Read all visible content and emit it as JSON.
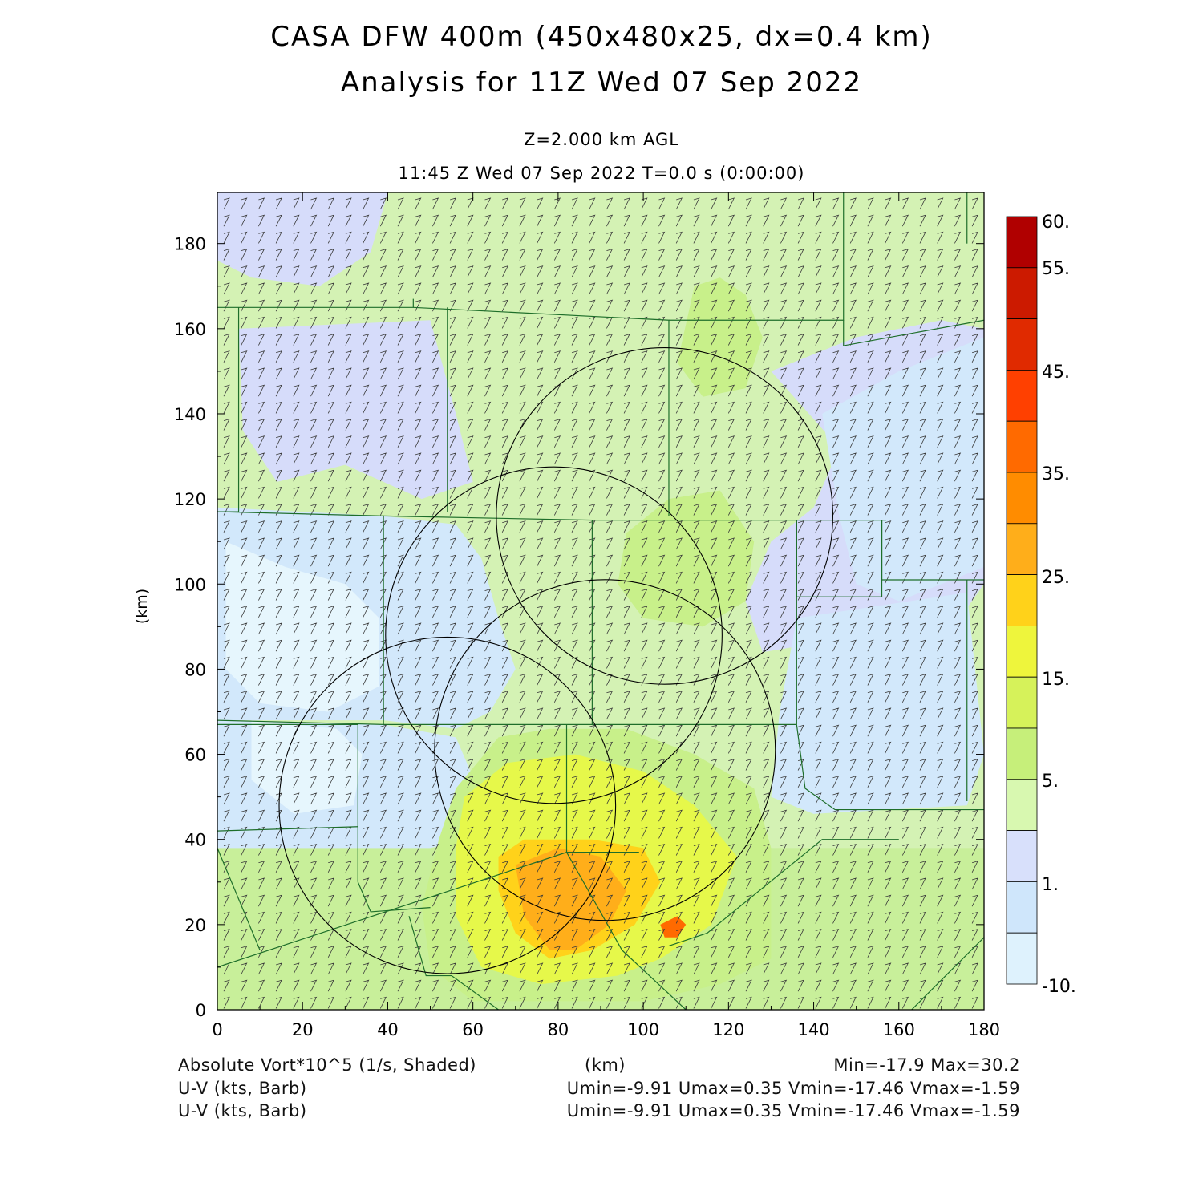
{
  "header": {
    "title_line1": "CASA DFW 400m (450x480x25, dx=0.4 km)",
    "title_line2": "Analysis for 11Z Wed 07 Sep 2022",
    "level": "Z=2.000 km AGL",
    "time": "11:45 Z Wed 07 Sep 2022   T=0.0 s (0:00:00)"
  },
  "axes": {
    "x_label": "(km)",
    "y_label": "(km)",
    "x_range": [
      0,
      180
    ],
    "y_range": [
      0,
      192
    ],
    "x_ticks": [
      "0",
      "20",
      "40",
      "60",
      "80",
      "100",
      "120",
      "140",
      "160",
      "180"
    ],
    "y_ticks": [
      "0",
      "20",
      "40",
      "60",
      "80",
      "100",
      "120",
      "140",
      "160",
      "180"
    ]
  },
  "colorbar": {
    "labels": [
      "60.",
      "55.",
      "45.",
      "35.",
      "25.",
      "15.",
      "5.",
      "1.",
      "-10."
    ],
    "colors": [
      "#b00000",
      "#cc1a00",
      "#e02a00",
      "#ff4000",
      "#ff6a00",
      "#ff8c00",
      "#ffae1a",
      "#ffd21a",
      "#eef53c",
      "#d6f25a",
      "#c6ef7a",
      "#d8f8b0",
      "#d8e0fb",
      "#cfe6fb",
      "#def2fd"
    ]
  },
  "footer": {
    "field1": "Absolute Vort*10^5 (1/s, Shaded)",
    "xunit": "(km)",
    "minmax": "Min=-17.9 Max=30.2",
    "field2": "U-V (kts, Barb)",
    "uv2": "Umin=-9.91 Umax=0.35 Vmin=-17.46 Vmax=-1.59",
    "field3": "U-V (kts, Barb)",
    "uv3": "Umin=-9.91 Umax=0.35 Vmin=-17.46 Vmax=-1.59"
  },
  "map_data": {
    "radar_rings_km": [
      {
        "cx": 105,
        "cy": 116,
        "r": 39.5
      },
      {
        "cx": 79,
        "cy": 88,
        "r": 39.5
      },
      {
        "cx": 91,
        "cy": 61,
        "r": 40
      },
      {
        "cx": 54,
        "cy": 48,
        "r": 39.5
      }
    ],
    "county_lines_km": [
      [
        [
          0,
          165
        ],
        [
          46,
          165
        ],
        [
          46,
          167
        ]
      ],
      [
        [
          5,
          165
        ],
        [
          5,
          117
        ],
        [
          0,
          117
        ]
      ],
      [
        [
          54,
          165
        ],
        [
          54,
          117
        ]
      ],
      [
        [
          46,
          165
        ],
        [
          106,
          162
        ],
        [
          106,
          116
        ]
      ],
      [
        [
          106,
          162
        ],
        [
          147,
          162
        ],
        [
          147,
          192
        ]
      ],
      [
        [
          147,
          162
        ],
        [
          147,
          156
        ],
        [
          180,
          162
        ]
      ],
      [
        [
          0,
          117
        ],
        [
          39,
          116
        ],
        [
          39,
          67
        ],
        [
          0,
          68
        ]
      ],
      [
        [
          39,
          116
        ],
        [
          88,
          115
        ],
        [
          136,
          115
        ],
        [
          157,
          115
        ]
      ],
      [
        [
          88,
          115
        ],
        [
          88,
          67
        ]
      ],
      [
        [
          136,
          115
        ],
        [
          136,
          67
        ]
      ],
      [
        [
          136,
          115
        ],
        [
          136,
          97
        ],
        [
          156,
          97
        ],
        [
          156,
          115
        ]
      ],
      [
        [
          156,
          115
        ],
        [
          156,
          101
        ],
        [
          176,
          101
        ],
        [
          180,
          101
        ]
      ],
      [
        [
          39,
          67
        ],
        [
          88,
          67
        ],
        [
          136,
          67
        ]
      ],
      [
        [
          0,
          67
        ],
        [
          33,
          67
        ],
        [
          33,
          30
        ]
      ],
      [
        [
          33,
          30
        ],
        [
          36,
          23
        ],
        [
          50,
          24
        ]
      ],
      [
        [
          0,
          10
        ],
        [
          82,
          37
        ],
        [
          99,
          37
        ]
      ],
      [
        [
          82,
          67
        ],
        [
          82,
          37
        ],
        [
          95,
          14
        ],
        [
          110,
          0
        ]
      ],
      [
        [
          136,
          67
        ],
        [
          138,
          52
        ],
        [
          145,
          47
        ],
        [
          180,
          47
        ]
      ],
      [
        [
          176,
          101
        ],
        [
          176,
          49
        ]
      ],
      [
        [
          106,
          15
        ],
        [
          115,
          18
        ],
        [
          142,
          40
        ],
        [
          160,
          40
        ]
      ],
      [
        [
          0,
          38
        ],
        [
          10,
          14
        ]
      ],
      [
        [
          45,
          22
        ],
        [
          49,
          8
        ],
        [
          55,
          8
        ],
        [
          66,
          0
        ]
      ],
      [
        [
          180,
          17
        ],
        [
          163,
          0
        ]
      ],
      [
        [
          176,
          192
        ],
        [
          176,
          180
        ]
      ],
      [
        [
          0,
          42
        ],
        [
          33,
          43
        ]
      ]
    ],
    "vorticity_patches": [
      {
        "level": "1",
        "poly": [
          [
            0,
            192
          ],
          [
            40,
            192
          ],
          [
            36,
            178
          ],
          [
            24,
            170
          ],
          [
            8,
            172
          ],
          [
            0,
            176
          ]
        ]
      },
      {
        "level": "1",
        "poly": [
          [
            5,
            160
          ],
          [
            50,
            162
          ],
          [
            56,
            140
          ],
          [
            60,
            124
          ],
          [
            48,
            120
          ],
          [
            30,
            128
          ],
          [
            14,
            124
          ],
          [
            6,
            136
          ]
        ]
      },
      {
        "level": "1",
        "poly": [
          [
            130,
            150
          ],
          [
            150,
            158
          ],
          [
            170,
            162
          ],
          [
            180,
            160
          ],
          [
            180,
            100
          ],
          [
            170,
            86
          ],
          [
            156,
            84
          ],
          [
            140,
            86
          ],
          [
            128,
            84
          ],
          [
            124,
            96
          ],
          [
            130,
            110
          ],
          [
            140,
            118
          ],
          [
            146,
            132
          ]
        ]
      },
      {
        "level": "0",
        "poly": [
          [
            0,
            118
          ],
          [
            39,
            116
          ],
          [
            56,
            114
          ],
          [
            62,
            106
          ],
          [
            66,
            92
          ],
          [
            70,
            80
          ],
          [
            64,
            70
          ],
          [
            56,
            66
          ],
          [
            39,
            68
          ],
          [
            0,
            68
          ]
        ]
      },
      {
        "level": "0",
        "poly": [
          [
            142,
            140
          ],
          [
            160,
            150
          ],
          [
            180,
            158
          ],
          [
            180,
            104
          ],
          [
            160,
            96
          ],
          [
            150,
            100
          ],
          [
            146,
            116
          ]
        ]
      },
      {
        "level": "0",
        "poly": [
          [
            0,
            68
          ],
          [
            39,
            67
          ],
          [
            56,
            64
          ],
          [
            62,
            50
          ],
          [
            58,
            40
          ],
          [
            50,
            38
          ],
          [
            30,
            38
          ],
          [
            0,
            38
          ]
        ]
      },
      {
        "level": "0",
        "poly": [
          [
            136,
            92
          ],
          [
            176,
            98
          ],
          [
            180,
            60
          ],
          [
            176,
            48
          ],
          [
            140,
            46
          ],
          [
            130,
            50
          ],
          [
            132,
            70
          ]
        ]
      },
      {
        "level": "-10",
        "poly": [
          [
            2,
            110
          ],
          [
            16,
            104
          ],
          [
            30,
            100
          ],
          [
            38,
            92
          ],
          [
            38,
            76
          ],
          [
            26,
            70
          ],
          [
            10,
            72
          ],
          [
            2,
            80
          ]
        ]
      },
      {
        "level": "-10",
        "poly": [
          [
            8,
            68
          ],
          [
            28,
            66
          ],
          [
            34,
            60
          ],
          [
            32,
            48
          ],
          [
            18,
            46
          ],
          [
            8,
            54
          ]
        ]
      },
      {
        "level": "10",
        "poly": [
          [
            112,
            170
          ],
          [
            118,
            172
          ],
          [
            124,
            168
          ],
          [
            128,
            158
          ],
          [
            124,
            146
          ],
          [
            114,
            144
          ],
          [
            108,
            152
          ]
        ]
      },
      {
        "level": "10",
        "poly": [
          [
            96,
            112
          ],
          [
            106,
            120
          ],
          [
            118,
            122
          ],
          [
            126,
            110
          ],
          [
            124,
            96
          ],
          [
            114,
            90
          ],
          [
            100,
            92
          ],
          [
            94,
            100
          ]
        ]
      },
      {
        "level": "10",
        "poly": [
          [
            52,
            40
          ],
          [
            56,
            52
          ],
          [
            66,
            64
          ],
          [
            78,
            66
          ],
          [
            96,
            66
          ],
          [
            112,
            60
          ],
          [
            126,
            52
          ],
          [
            130,
            38
          ],
          [
            130,
            12
          ],
          [
            118,
            6
          ],
          [
            100,
            2
          ],
          [
            60,
            2
          ],
          [
            50,
            10
          ],
          [
            48,
            24
          ]
        ]
      },
      {
        "level": "15",
        "poly": [
          [
            56,
            38
          ],
          [
            58,
            50
          ],
          [
            68,
            58
          ],
          [
            84,
            60
          ],
          [
            100,
            56
          ],
          [
            112,
            48
          ],
          [
            122,
            36
          ],
          [
            116,
            20
          ],
          [
            104,
            12
          ],
          [
            94,
            8
          ],
          [
            76,
            6
          ],
          [
            62,
            10
          ],
          [
            56,
            22
          ]
        ]
      },
      {
        "level": "20",
        "poly": [
          [
            66,
            36
          ],
          [
            72,
            40
          ],
          [
            88,
            40
          ],
          [
            100,
            38
          ],
          [
            104,
            30
          ],
          [
            98,
            20
          ],
          [
            88,
            14
          ],
          [
            78,
            12
          ],
          [
            70,
            18
          ],
          [
            66,
            28
          ]
        ]
      },
      {
        "level": "25",
        "poly": [
          [
            70,
            34
          ],
          [
            80,
            38
          ],
          [
            90,
            36
          ],
          [
            96,
            28
          ],
          [
            92,
            20
          ],
          [
            84,
            14
          ],
          [
            78,
            14
          ],
          [
            72,
            22
          ]
        ]
      },
      {
        "level": "30",
        "poly": [
          [
            104,
            20
          ],
          [
            108,
            22
          ],
          [
            110,
            20
          ],
          [
            108,
            17
          ],
          [
            105,
            17
          ]
        ]
      }
    ]
  }
}
